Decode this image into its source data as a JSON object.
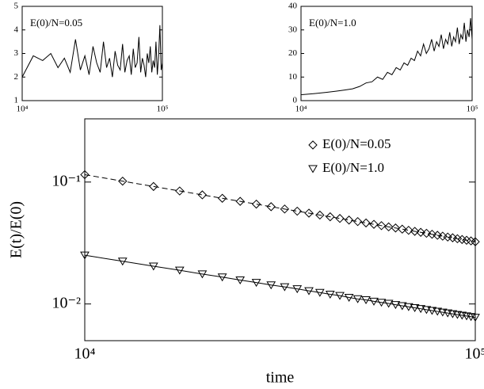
{
  "chart_data": [
    {
      "type": "line",
      "annotation": "E(0)/N=0.05",
      "log_x": true,
      "x": [
        10000,
        12000,
        14000,
        16000,
        18000,
        20000,
        22000,
        24000,
        26000,
        28000,
        30000,
        32000,
        34000,
        36000,
        38000,
        40000,
        42000,
        44000,
        46000,
        48000,
        50000,
        52000,
        54000,
        56000,
        58000,
        60000,
        62000,
        64000,
        66000,
        68000,
        70000,
        72000,
        74000,
        76000,
        78000,
        80000,
        82000,
        84000,
        86000,
        88000,
        90000,
        92000,
        94000,
        96000,
        98000,
        100000
      ],
      "series": [
        {
          "color": "#000000",
          "values": [
            2.0,
            2.9,
            2.7,
            3.0,
            2.4,
            2.8,
            2.2,
            3.6,
            2.3,
            2.9,
            2.1,
            3.3,
            2.6,
            2.2,
            3.5,
            2.4,
            2.8,
            2.0,
            3.1,
            2.5,
            2.3,
            3.4,
            2.2,
            2.7,
            2.9,
            2.1,
            3.2,
            2.4,
            2.6,
            3.7,
            2.2,
            2.8,
            2.5,
            2.0,
            3.0,
            2.6,
            3.3,
            2.2,
            2.7,
            2.4,
            3.5,
            2.1,
            2.9,
            4.2,
            2.3,
            2.6
          ]
        }
      ],
      "xlim": [
        10000,
        100000
      ],
      "xticks": [
        {
          "value": 10000,
          "label": "10⁴"
        },
        {
          "value": 100000,
          "label": "10⁵"
        }
      ],
      "ylim": [
        1,
        5
      ],
      "yticks": [
        1,
        2,
        3,
        4,
        5
      ]
    },
    {
      "type": "line",
      "annotation": "E(0)/N=1.0",
      "log_x": true,
      "x": [
        10000,
        12000,
        14000,
        16000,
        18000,
        20000,
        22000,
        24000,
        26000,
        28000,
        30000,
        32000,
        34000,
        36000,
        38000,
        40000,
        42000,
        44000,
        46000,
        48000,
        50000,
        52000,
        54000,
        56000,
        58000,
        60000,
        62000,
        64000,
        66000,
        68000,
        70000,
        72000,
        74000,
        76000,
        78000,
        80000,
        82000,
        84000,
        86000,
        88000,
        90000,
        92000,
        94000,
        96000,
        98000,
        100000
      ],
      "series": [
        {
          "color": "#000000",
          "values": [
            2.5,
            3,
            3.5,
            4,
            4.5,
            5,
            6,
            7.5,
            8,
            10,
            9,
            12,
            11,
            14,
            13,
            16,
            15,
            18,
            17,
            21,
            19,
            24,
            20,
            22,
            26,
            21,
            25,
            23,
            28,
            22,
            26,
            24,
            29,
            23,
            27,
            25,
            31,
            24,
            28,
            26,
            33,
            25,
            30,
            27,
            35,
            26
          ]
        }
      ],
      "xlim": [
        10000,
        100000
      ],
      "xticks": [
        {
          "value": 10000,
          "label": "10⁴"
        },
        {
          "value": 100000,
          "label": "10⁵"
        }
      ],
      "ylim": [
        0,
        40
      ],
      "yticks": [
        0,
        10,
        20,
        30,
        40
      ]
    },
    {
      "type": "line",
      "x_label": "time",
      "y_label": "E(t)/E(0)",
      "log_x": true,
      "log_y": true,
      "legend": "upper right",
      "x": [
        10000,
        12500,
        15000,
        17500,
        20000,
        22500,
        25000,
        27500,
        30000,
        32500,
        35000,
        37500,
        40000,
        42500,
        45000,
        47500,
        50000,
        52500,
        55000,
        57500,
        60000,
        62500,
        65000,
        67500,
        70000,
        72500,
        75000,
        77500,
        80000,
        82500,
        85000,
        87500,
        90000,
        92500,
        95000,
        97500,
        100000
      ],
      "series": [
        {
          "name": "E(0)/N=0.05",
          "color": "#000000",
          "marker": "diamond",
          "line_style": "dashed",
          "values": [
            0.115,
            0.1017,
            0.092,
            0.0845,
            0.0785,
            0.0736,
            0.0695,
            0.0659,
            0.0628,
            0.0601,
            0.0577,
            0.0556,
            0.0536,
            0.0519,
            0.0503,
            0.0488,
            0.0474,
            0.0462,
            0.045,
            0.0439,
            0.0429,
            0.042,
            0.0411,
            0.0402,
            0.0394,
            0.0387,
            0.038,
            0.0373,
            0.0366,
            0.036,
            0.0354,
            0.0349,
            0.0343,
            0.0338,
            0.0333,
            0.0329,
            0.0324
          ]
        },
        {
          "name": "E(0)/N=1.0",
          "color": "#000000",
          "marker": "triangle-down",
          "line_style": "solid",
          "values": [
            0.0251,
            0.0224,
            0.0204,
            0.0189,
            0.0176,
            0.0166,
            0.0157,
            0.015,
            0.0143,
            0.0138,
            0.0133,
            0.0128,
            0.0124,
            0.012,
            0.0117,
            0.0113,
            0.011,
            0.0108,
            0.0105,
            0.0103,
            0.0101,
            0.00986,
            0.00966,
            0.00948,
            0.0093,
            0.00914,
            0.00898,
            0.00883,
            0.00869,
            0.00856,
            0.00843,
            0.0083,
            0.00818,
            0.00807,
            0.00796,
            0.00786,
            0.00776
          ]
        }
      ],
      "xlim": [
        10000,
        100000
      ],
      "xticks": [
        {
          "value": 10000,
          "label": "10⁴"
        },
        {
          "value": 100000,
          "label": "10⁵"
        }
      ],
      "ylim": [
        0.005,
        0.33
      ],
      "yticks": [
        {
          "value": 0.01,
          "label": "10⁻²"
        },
        {
          "value": 0.1,
          "label": "10⁻¹"
        }
      ]
    }
  ]
}
